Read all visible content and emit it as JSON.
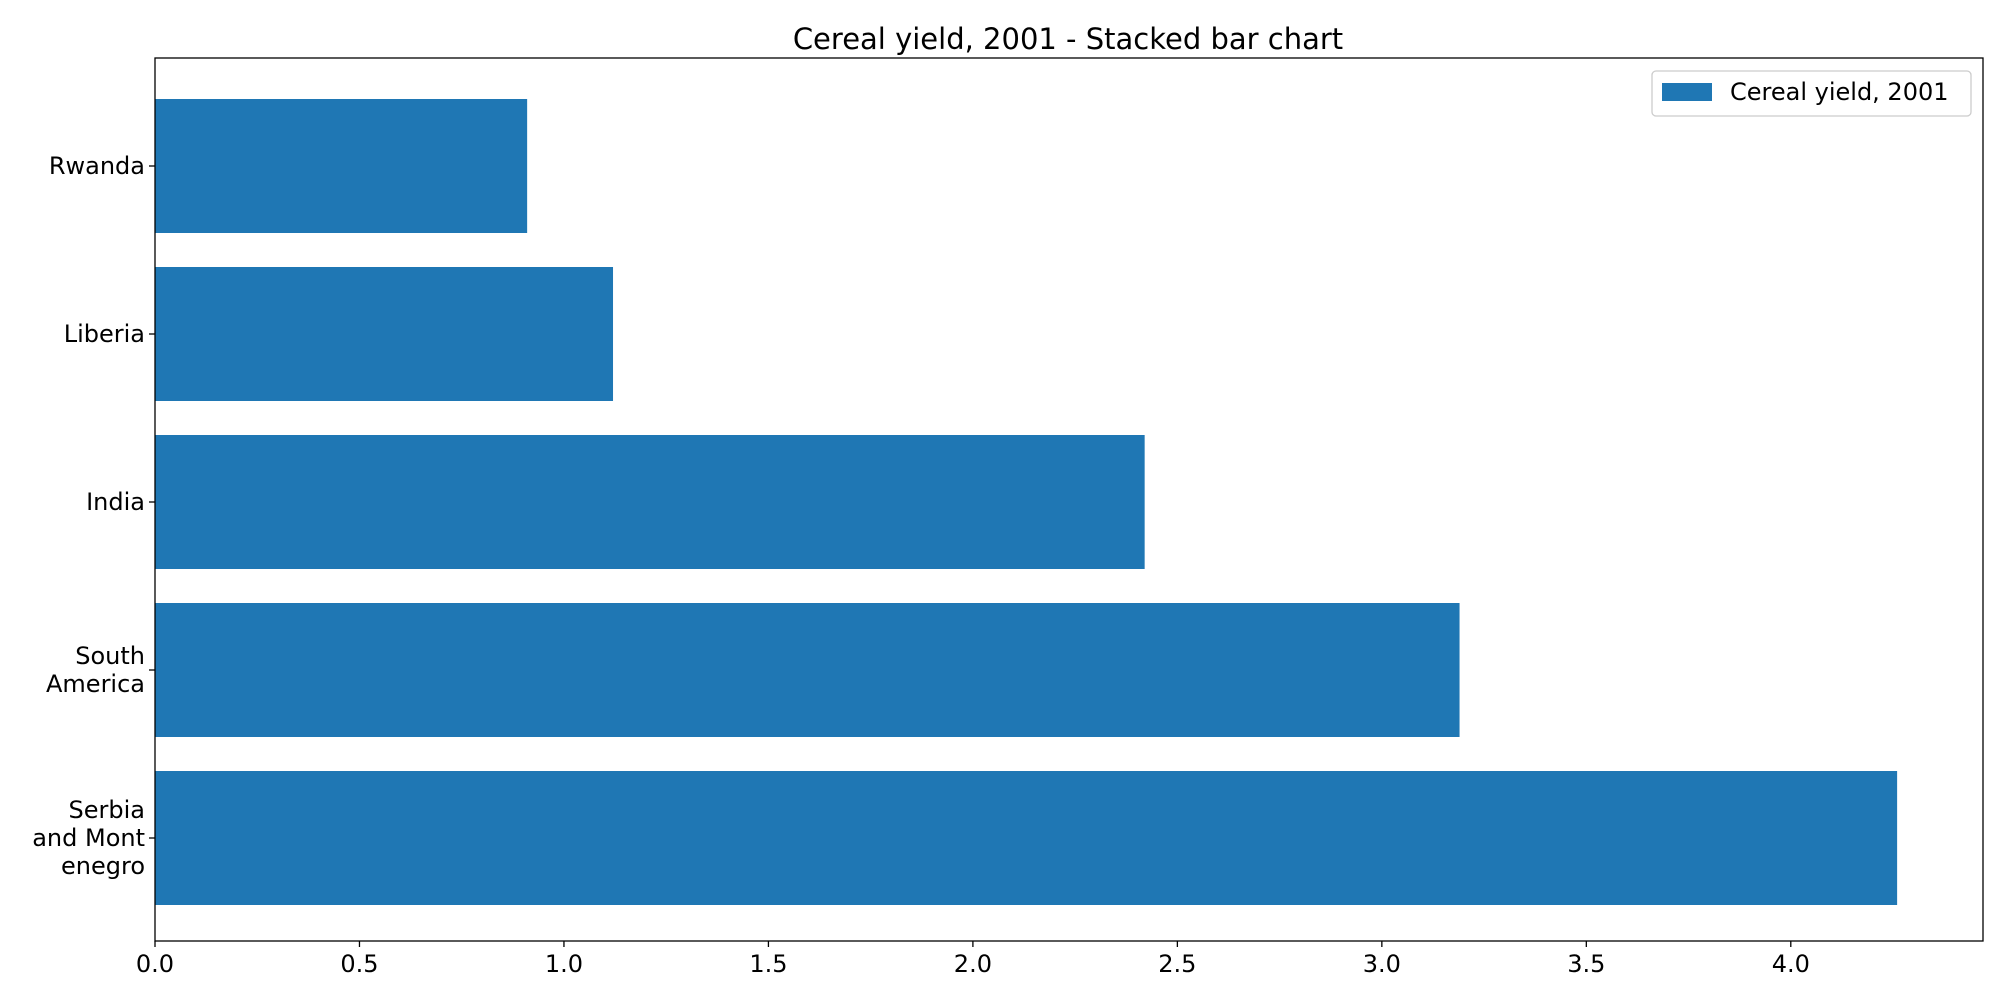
{
  "chart_data": {
    "type": "bar",
    "orientation": "horizontal",
    "title": "Cereal yield, 2001 - Stacked bar chart",
    "xlabel": "",
    "ylabel": "",
    "categories": [
      [
        "Rwanda"
      ],
      [
        "Liberia"
      ],
      [
        "India"
      ],
      [
        "South",
        "America"
      ],
      [
        "Serbia",
        "and Mont",
        "enegro"
      ]
    ],
    "series": [
      {
        "name": "Cereal yield, 2001",
        "color": "#1f77b4",
        "values": [
          0.91,
          1.12,
          2.42,
          3.19,
          4.26
        ]
      }
    ],
    "xlim": [
      0,
      4.47
    ],
    "xticks": [
      0.0,
      0.5,
      1.0,
      1.5,
      2.0,
      2.5,
      3.0,
      3.5,
      4.0
    ],
    "xtick_labels": [
      "0.0",
      "0.5",
      "1.0",
      "1.5",
      "2.0",
      "2.5",
      "3.0",
      "3.5",
      "4.0"
    ],
    "grid": false,
    "legend_position": "top-right"
  }
}
